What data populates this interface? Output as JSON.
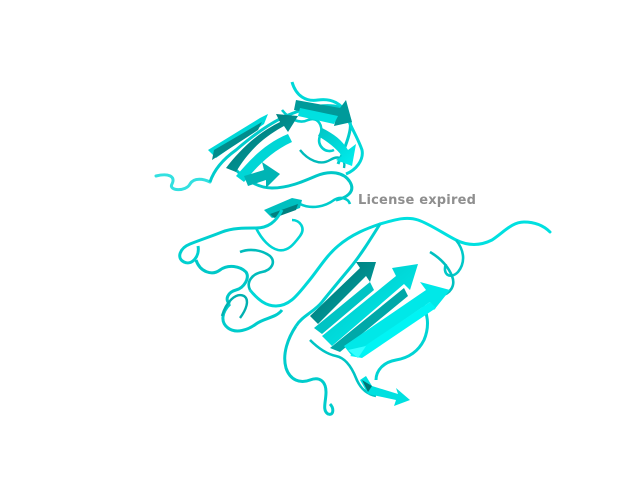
{
  "viewer": {
    "watermark_text": "License expired",
    "background_color": "#ffffff",
    "cartoon_color": "#00e5e5",
    "cartoon_shadow_color": "#007a7a",
    "cartoon_light_color": "#33ffff"
  }
}
